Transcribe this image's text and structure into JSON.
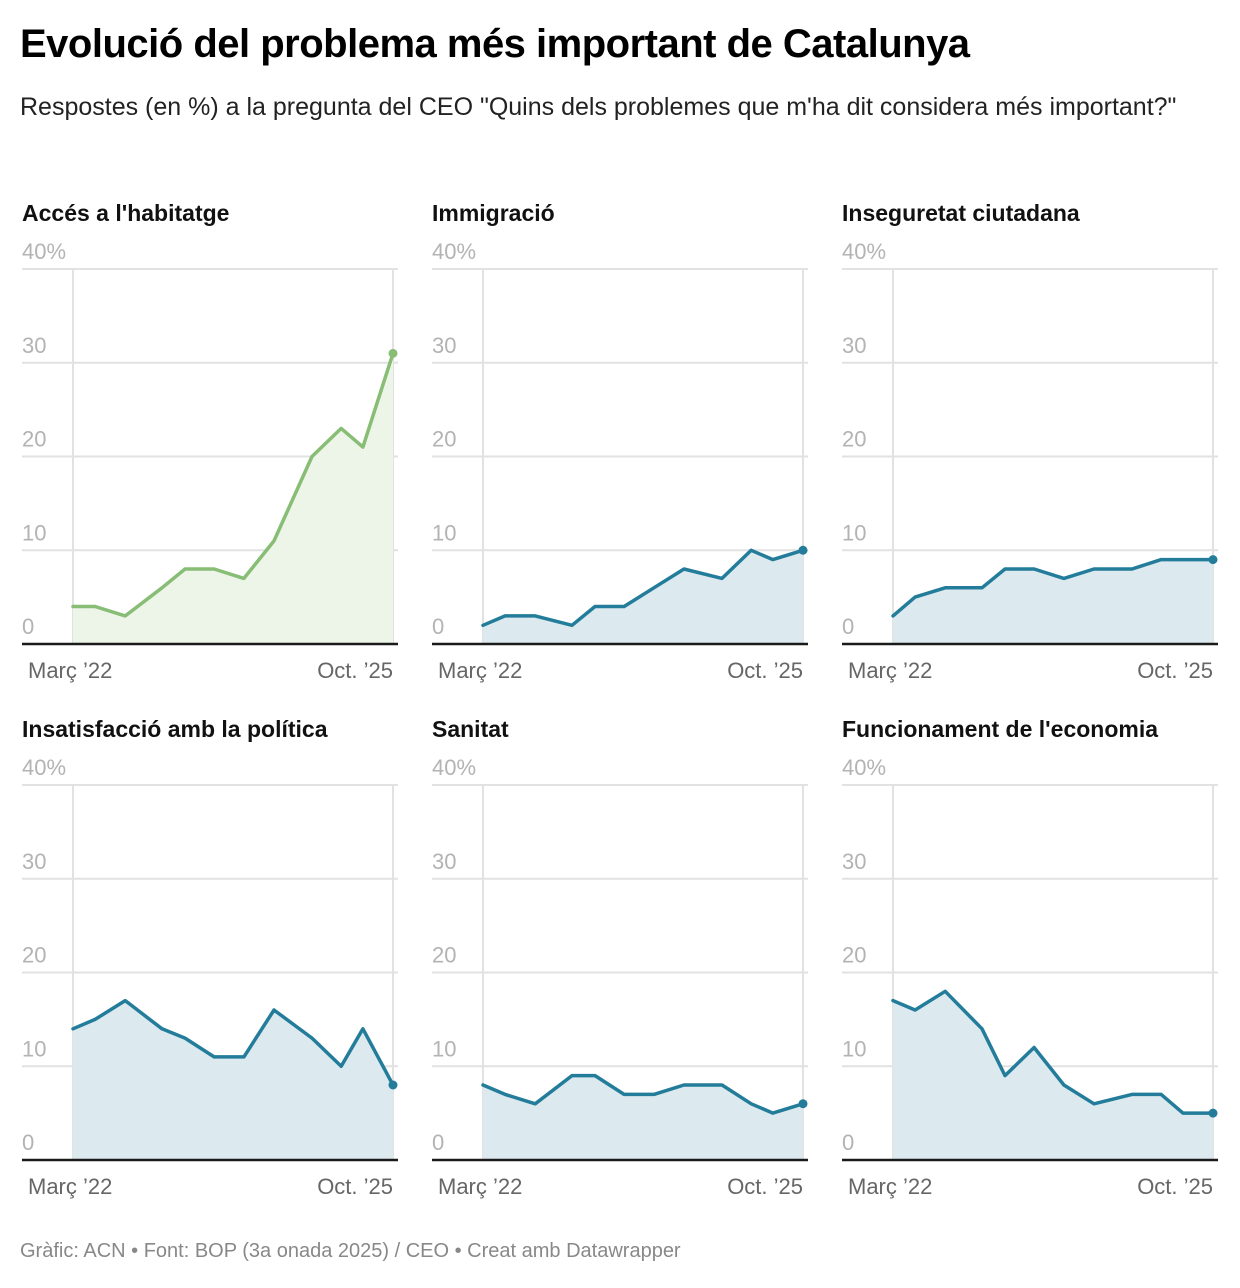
{
  "header": {
    "title": "Evolució del problema més important de Catalunya",
    "subtitle": "Respostes (en %) a la pregunta del CEO \"Quins dels problemes que m'ha dit considera més important?\""
  },
  "footer": {
    "text": "Gràfic: ACN • Font: BOP (3a onada 2025) / CEO • Creat amb Datawrapper"
  },
  "chart_data": [
    {
      "type": "area",
      "title": "Accés a l'habitatge",
      "color": "#88bd75",
      "fill": "#edf5e8",
      "x_labels": [
        "Març ’22",
        "Oct. ’25"
      ],
      "x_positions": [
        0,
        0.069,
        0.163,
        0.278,
        0.35,
        0.441,
        0.534,
        0.628,
        0.747,
        0.838,
        0.906,
        1
      ],
      "values": [
        4,
        4,
        3,
        6,
        8,
        8,
        7,
        11,
        20,
        23,
        21,
        31
      ],
      "yticks": [
        "0",
        "10",
        "20",
        "30",
        "40%"
      ],
      "ylim": [
        0,
        40
      ]
    },
    {
      "type": "area",
      "title": "Immigració",
      "color": "#237d9a",
      "fill": "#dce9ef",
      "x_labels": [
        "Març ’22",
        "Oct. ’25"
      ],
      "x_positions": [
        0,
        0.069,
        0.163,
        0.278,
        0.35,
        0.441,
        0.534,
        0.628,
        0.747,
        0.838,
        0.906,
        1
      ],
      "values": [
        2,
        3,
        3,
        2,
        4,
        4,
        6,
        8,
        7,
        10,
        9,
        10
      ],
      "yticks": [
        "0",
        "10",
        "20",
        "30",
        "40%"
      ],
      "ylim": [
        0,
        40
      ]
    },
    {
      "type": "area",
      "title": "Inseguretat ciutadana",
      "color": "#237d9a",
      "fill": "#dce9ef",
      "x_labels": [
        "Març ’22",
        "Oct. ’25"
      ],
      "x_positions": [
        0,
        0.069,
        0.163,
        0.278,
        0.35,
        0.441,
        0.534,
        0.628,
        0.747,
        0.838,
        0.906,
        1
      ],
      "values": [
        3,
        5,
        6,
        6,
        8,
        8,
        7,
        8,
        8,
        9,
        9,
        9
      ],
      "yticks": [
        "0",
        "10",
        "20",
        "30",
        "40%"
      ],
      "ylim": [
        0,
        40
      ]
    },
    {
      "type": "area",
      "title": "Insatisfacció amb la política",
      "color": "#237d9a",
      "fill": "#dce9ef",
      "x_labels": [
        "Març ’22",
        "Oct. ’25"
      ],
      "x_positions": [
        0,
        0.069,
        0.163,
        0.278,
        0.35,
        0.441,
        0.534,
        0.628,
        0.747,
        0.838,
        0.906,
        1
      ],
      "values": [
        14,
        15,
        17,
        14,
        13,
        11,
        11,
        16,
        13,
        10,
        14,
        8
      ],
      "yticks": [
        "0",
        "10",
        "20",
        "30",
        "40%"
      ],
      "ylim": [
        0,
        40
      ]
    },
    {
      "type": "area",
      "title": "Sanitat",
      "color": "#237d9a",
      "fill": "#dce9ef",
      "x_labels": [
        "Març ’22",
        "Oct. ’25"
      ],
      "x_positions": [
        0,
        0.069,
        0.163,
        0.278,
        0.35,
        0.441,
        0.534,
        0.628,
        0.747,
        0.838,
        0.906,
        1
      ],
      "values": [
        8,
        7,
        6,
        9,
        9,
        7,
        7,
        8,
        8,
        6,
        5,
        6
      ],
      "yticks": [
        "0",
        "10",
        "20",
        "30",
        "40%"
      ],
      "ylim": [
        0,
        40
      ]
    },
    {
      "type": "area",
      "title": "Funcionament de l'economia",
      "color": "#237d9a",
      "fill": "#dce9ef",
      "x_labels": [
        "Març ’22",
        "Oct. ’25"
      ],
      "x_positions": [
        0,
        0.069,
        0.163,
        0.278,
        0.35,
        0.441,
        0.534,
        0.628,
        0.747,
        0.838,
        0.906,
        1
      ],
      "values": [
        17,
        16,
        18,
        14,
        9,
        12,
        8,
        6,
        7,
        7,
        5,
        5
      ],
      "yticks": [
        "0",
        "10",
        "20",
        "30",
        "40%"
      ],
      "ylim": [
        0,
        40
      ]
    }
  ]
}
